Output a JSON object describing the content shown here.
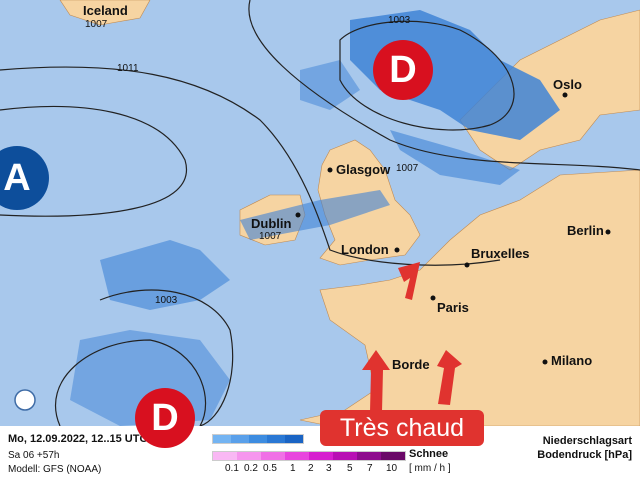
{
  "colors": {
    "sea": "#a8c8ec",
    "land": "#f6d4a2",
    "rain": "#3f83d6",
    "high": "#0d4e9b",
    "low": "#d8101f",
    "hot_box": "#e0332f"
  },
  "pressure_centers": [
    {
      "label": "A",
      "type": "high"
    },
    {
      "label": "D",
      "type": "low"
    },
    {
      "label": "D",
      "type": "low"
    }
  ],
  "isobar_labels": [
    "1007",
    "1011",
    "1003",
    "1007",
    "1007",
    "1003"
  ],
  "cities": [
    "Iceland",
    "Oslo",
    "Glasgow",
    "Dublin",
    "London",
    "Bruxelles",
    "Berlin",
    "Paris",
    "Milano",
    "Borde"
  ],
  "callout": "Très chaud",
  "legend": {
    "date": "Mo, 12.09.2022, 12..15 UTC",
    "forecast": "Sa 06 +57h",
    "model": "Modell: GFS (NOAA)",
    "snow_label": "Schnee",
    "unit": "[ mm / h ]",
    "ticks": [
      "0.1",
      "0.2",
      "0.5",
      "1",
      "2",
      "3",
      "5",
      "7",
      "10"
    ],
    "type_title": "Niederschlagsart",
    "pressure_title": "Bodendruck [hPa]",
    "rain_colors": [
      "#74b4f2",
      "#5aa0ea",
      "#3d8ce0",
      "#2a78d4",
      "#1a64c4"
    ],
    "snow_colors": [
      "#f9b8f4",
      "#f696ee",
      "#f070e6",
      "#e845de",
      "#d61fcf",
      "#b80fb4",
      "#8e0b8e",
      "#6a0868"
    ]
  },
  "zoom_icon": "magnifier-icon"
}
